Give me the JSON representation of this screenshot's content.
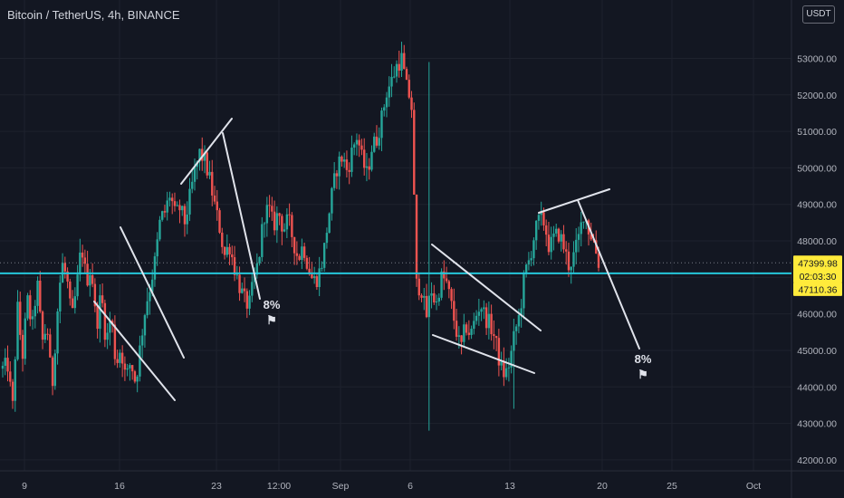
{
  "header": {
    "title": "Bitcoin / TetherUS, 4h, BINANCE",
    "currency": "USDT"
  },
  "colors": {
    "background": "#131722",
    "up": "#26a69a",
    "down": "#ef5350",
    "level_line": "#26c6da",
    "drawing": "#e0e3eb",
    "price_tag": "#ffeb3b",
    "current_price_line": "#787b86"
  },
  "chart_data": {
    "type": "candlestick",
    "symbol": "Bitcoin / TetherUS",
    "interval": "4h",
    "exchange": "BINANCE",
    "ylim": [
      41700,
      54600
    ],
    "y_ticks": [
      42000,
      43000,
      44000,
      45000,
      46000,
      47000,
      48000,
      49000,
      50000,
      51000,
      52000,
      53000
    ],
    "y_tick_labels": [
      "42000.00",
      "43000.00",
      "44000.00",
      "45000.00",
      "46000.00",
      "47000.00",
      "48000.00",
      "49000.00",
      "50000.00",
      "51000.00",
      "52000.00",
      "53000.00"
    ],
    "x_tick_labels": [
      "9",
      "16",
      "23",
      "12:00",
      "Sep",
      "6",
      "13",
      "20",
      "25",
      "Oct"
    ],
    "price_tags": {
      "last_price": "47399.98",
      "countdown": "02:03:30",
      "level_price": "47110.36"
    },
    "horizontal_level": 47110.36,
    "path": [
      [
        44500,
        44600,
        43400,
        46200,
        44800,
        46400,
        45600,
        46900,
        45200,
        45700,
        43900,
        45900,
        47400,
        47000,
        45800,
        46700,
        47900,
        46900,
        47300,
        45600,
        46600,
        45200,
        46000,
        44600,
        45100,
        44200,
        44700,
        44100,
        45200,
        46200,
        46800,
        47500,
        48600,
        48800,
        49300,
        48700,
        48900,
        48500,
        49200,
        49900,
        50400,
        50200,
        49700,
        49000,
        48400,
        47600,
        47900,
        47300,
        46800,
        46400,
        46200,
        46900,
        47500,
        48700,
        48900,
        48400,
        48800,
        48300,
        48600,
        48000,
        47500,
        47900,
        47300,
        46900,
        47000,
        47500,
        48500,
        49400,
        50100,
        50300,
        49900,
        50500,
        50900,
        50200,
        49800,
        50600,
        50800,
        51400,
        52100,
        52400,
        52800,
        53000,
        52200,
        51800,
        46800,
        46700,
        45900,
        46700,
        46200,
        47000,
        46900,
        46300,
        45600,
        45000,
        45700,
        45400,
        45900,
        46300,
        45900,
        45700,
        45300,
        44600,
        44300,
        44700,
        45500,
        46000,
        47100,
        47500,
        48200,
        48600,
        48500,
        47800,
        48100,
        48200,
        47800,
        47300,
        47600,
        48100,
        48800,
        48300,
        48000,
        47400
      ]
    ],
    "annotations": [
      {
        "label": "8%",
        "flag": "⚑"
      },
      {
        "label": "8%",
        "flag": "⚑"
      }
    ]
  }
}
